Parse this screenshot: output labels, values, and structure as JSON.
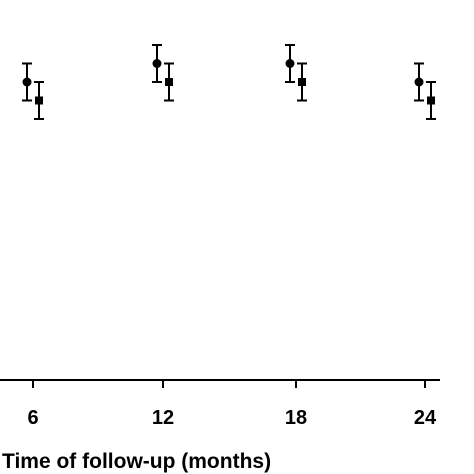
{
  "chart_data": {
    "type": "scatter",
    "xlabel": "Time of follow-up (months)",
    "ylabel": "",
    "title": "",
    "categories": [
      "6",
      "12",
      "18",
      "24"
    ],
    "grid": false,
    "legend": "none",
    "series": [
      {
        "marker": "circle",
        "color": "#000000",
        "points": [
          {
            "x": "6",
            "y": 0.0,
            "lower": -1.0,
            "upper": 1.0
          },
          {
            "x": "12",
            "y": 1.0,
            "lower": 0.0,
            "upper": 2.0
          },
          {
            "x": "18",
            "y": 1.0,
            "lower": 0.0,
            "upper": 2.0
          },
          {
            "x": "24",
            "y": 0.0,
            "lower": -1.0,
            "upper": 1.0
          }
        ]
      },
      {
        "marker": "square",
        "color": "#000000",
        "points": [
          {
            "x": "6",
            "y": -1.0,
            "lower": -2.0,
            "upper": 0.0
          },
          {
            "x": "12",
            "y": 0.0,
            "lower": -1.0,
            "upper": 1.0
          },
          {
            "x": "18",
            "y": 0.0,
            "lower": -1.0,
            "upper": 1.0
          },
          {
            "x": "24",
            "y": -1.0,
            "lower": -2.0,
            "upper": 0.0
          }
        ]
      }
    ]
  }
}
